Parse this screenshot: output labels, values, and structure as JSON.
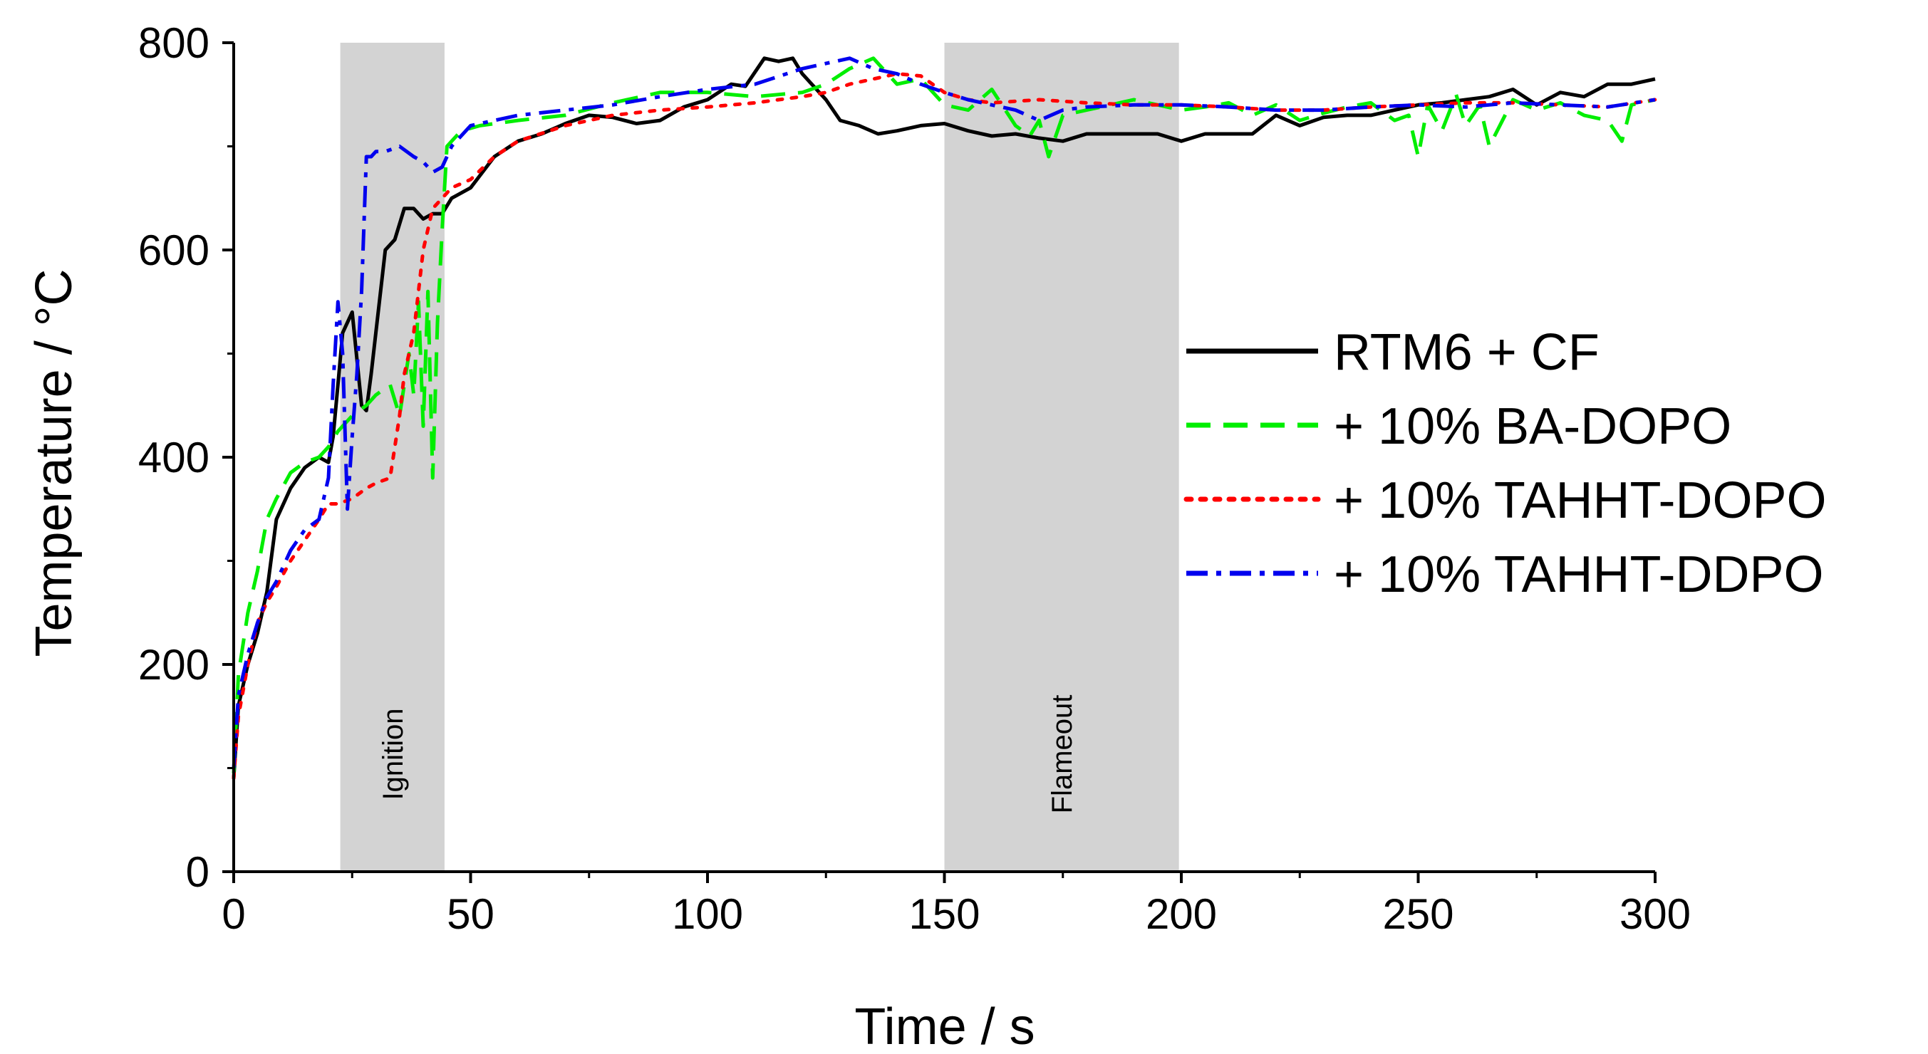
{
  "chart_data": {
    "type": "line",
    "title": "",
    "xlabel": "Time / s",
    "ylabel": "Temperature / °C",
    "xlim": [
      0,
      300
    ],
    "ylim": [
      0,
      800
    ],
    "xticks": [
      "0",
      "50",
      "100",
      "150",
      "200",
      "250",
      "300"
    ],
    "yticks": [
      "0",
      "200",
      "400",
      "600",
      "800"
    ],
    "grid": false,
    "legend_position": "right",
    "regions": [
      {
        "label": "Ignition",
        "x_start": 22.5,
        "x_end": 44.5,
        "color": "#d3d3d3"
      },
      {
        "label": "Flameout",
        "x_start": 150,
        "x_end": 199.5,
        "color": "#d3d3d3"
      }
    ],
    "series": [
      {
        "name": "RTM6 + CF",
        "color": "#000000",
        "dash": "solid",
        "x": [
          0,
          1,
          3,
          5,
          7,
          9,
          12,
          15,
          18,
          20,
          21,
          22,
          23,
          25,
          27,
          28,
          29,
          30,
          32,
          33,
          34,
          36,
          38,
          40,
          42,
          44,
          46,
          50,
          55,
          60,
          65,
          70,
          75,
          80,
          85,
          90,
          95,
          100,
          105,
          108,
          112,
          115,
          118,
          120,
          122,
          125,
          128,
          132,
          136,
          140,
          145,
          150,
          155,
          160,
          165,
          170,
          175,
          180,
          185,
          190,
          195,
          200,
          205,
          210,
          215,
          220,
          225,
          230,
          235,
          240,
          245,
          250,
          255,
          260,
          265,
          270,
          275,
          280,
          285,
          290,
          295,
          300
        ],
        "y": [
          90,
          160,
          200,
          230,
          270,
          340,
          370,
          390,
          400,
          395,
          420,
          470,
          520,
          540,
          450,
          445,
          480,
          520,
          600,
          605,
          610,
          640,
          640,
          630,
          635,
          635,
          650,
          660,
          690,
          705,
          712,
          722,
          730,
          728,
          722,
          725,
          738,
          745,
          760,
          758,
          785,
          782,
          785,
          770,
          760,
          745,
          725,
          720,
          712,
          715,
          720,
          722,
          715,
          710,
          712,
          708,
          705,
          712,
          712,
          712,
          712,
          705,
          712,
          712,
          712,
          730,
          720,
          728,
          730,
          730,
          735,
          740,
          742,
          745,
          748,
          755,
          740,
          752,
          748,
          760,
          760,
          765
        ]
      },
      {
        "name": "+ 10% BA-DOPO",
        "color": "#00ee00",
        "dash": "dashed",
        "x": [
          0,
          1,
          3,
          5,
          7,
          9,
          12,
          15,
          18,
          20,
          22,
          25,
          28,
          30,
          33,
          35,
          37,
          38,
          39,
          40,
          41,
          42,
          43,
          44,
          45,
          48,
          52,
          60,
          70,
          80,
          90,
          100,
          110,
          120,
          125,
          130,
          135,
          140,
          145,
          150,
          155,
          160,
          165,
          168,
          170,
          172,
          175,
          180,
          185,
          190,
          195,
          200,
          205,
          210,
          215,
          220,
          225,
          230,
          235,
          240,
          245,
          248,
          250,
          252,
          255,
          258,
          260,
          263,
          265,
          270,
          275,
          280,
          285,
          290,
          293,
          295,
          300
        ],
        "y": [
          95,
          190,
          250,
          290,
          340,
          360,
          385,
          395,
          400,
          410,
          425,
          440,
          450,
          460,
          470,
          440,
          500,
          460,
          550,
          430,
          560,
          380,
          530,
          620,
          700,
          715,
          720,
          725,
          730,
          742,
          752,
          752,
          748,
          752,
          760,
          775,
          785,
          760,
          765,
          740,
          735,
          755,
          720,
          710,
          725,
          690,
          730,
          735,
          740,
          745,
          740,
          735,
          738,
          742,
          730,
          740,
          725,
          732,
          738,
          742,
          725,
          730,
          690,
          740,
          715,
          750,
          720,
          740,
          700,
          745,
          735,
          742,
          730,
          725,
          705,
          740,
          745
        ]
      },
      {
        "name": "+ 10% TAHHT-DOPO",
        "color": "#ff0000",
        "dash": "dotted",
        "x": [
          0,
          1,
          3,
          5,
          7,
          9,
          12,
          15,
          18,
          20,
          22,
          25,
          28,
          30,
          33,
          35,
          36,
          38,
          40,
          42,
          44,
          46,
          50,
          55,
          60,
          70,
          80,
          90,
          100,
          110,
          120,
          125,
          130,
          135,
          140,
          145,
          150,
          155,
          160,
          170,
          180,
          190,
          200,
          210,
          220,
          230,
          240,
          250,
          260,
          270,
          280,
          290,
          300
        ],
        "y": [
          90,
          150,
          200,
          240,
          260,
          275,
          300,
          320,
          340,
          355,
          355,
          360,
          370,
          375,
          380,
          440,
          480,
          520,
          600,
          640,
          650,
          660,
          668,
          690,
          705,
          720,
          730,
          735,
          738,
          742,
          748,
          752,
          760,
          765,
          770,
          768,
          752,
          745,
          742,
          745,
          742,
          740,
          740,
          738,
          735,
          735,
          738,
          740,
          742,
          742,
          740,
          738,
          745
        ]
      },
      {
        "name": "+ 10% TAHHT-DDPO",
        "color": "#0000ee",
        "dash": "dashdot",
        "x": [
          0,
          1,
          3,
          5,
          7,
          9,
          12,
          15,
          18,
          20,
          21,
          22,
          23,
          24,
          25,
          26,
          27,
          28,
          29,
          30,
          32,
          35,
          38,
          40,
          42,
          44,
          46,
          50,
          55,
          60,
          70,
          80,
          90,
          100,
          110,
          120,
          125,
          130,
          135,
          140,
          145,
          150,
          155,
          160,
          165,
          170,
          175,
          180,
          190,
          200,
          210,
          220,
          230,
          240,
          250,
          260,
          270,
          280,
          290,
          300
        ],
        "y": [
          100,
          170,
          210,
          240,
          265,
          280,
          310,
          330,
          340,
          380,
          470,
          550,
          500,
          350,
          420,
          480,
          560,
          690,
          690,
          695,
          695,
          700,
          690,
          685,
          675,
          680,
          700,
          720,
          725,
          730,
          735,
          740,
          748,
          755,
          760,
          775,
          780,
          785,
          775,
          770,
          760,
          752,
          745,
          740,
          735,
          725,
          735,
          738,
          740,
          740,
          738,
          735,
          735,
          738,
          740,
          738,
          742,
          740,
          738,
          745
        ]
      }
    ]
  }
}
